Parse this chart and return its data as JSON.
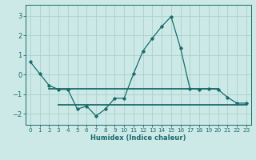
{
  "xlabel": "Humidex (Indice chaleur)",
  "background_color": "#cce9e7",
  "grid_color": "#aad0cc",
  "line_color": "#1a6b6b",
  "xlim": [
    -0.5,
    23.5
  ],
  "ylim": [
    -2.55,
    3.55
  ],
  "yticks": [
    -2,
    -1,
    0,
    1,
    2,
    3
  ],
  "xticks": [
    0,
    1,
    2,
    3,
    4,
    5,
    6,
    7,
    8,
    9,
    10,
    11,
    12,
    13,
    14,
    15,
    16,
    17,
    18,
    19,
    20,
    21,
    22,
    23
  ],
  "line1_x": [
    0,
    1,
    2,
    3,
    4,
    5,
    6,
    7,
    8,
    9,
    10,
    11,
    12,
    13,
    14,
    15,
    16,
    17,
    18,
    19,
    20,
    21,
    22,
    23
  ],
  "line1_y": [
    0.65,
    0.05,
    -0.55,
    -0.75,
    -0.75,
    -1.75,
    -1.6,
    -2.1,
    -1.75,
    -1.2,
    -1.2,
    0.05,
    1.2,
    1.85,
    2.45,
    2.95,
    1.35,
    -0.7,
    -0.75,
    -0.7,
    -0.75,
    -1.15,
    -1.45,
    -1.45
  ],
  "line2_x": [
    2,
    20
  ],
  "line2_y": [
    -0.72,
    -0.72
  ],
  "line3_x": [
    3,
    23
  ],
  "line3_y": [
    -1.52,
    -1.52
  ]
}
